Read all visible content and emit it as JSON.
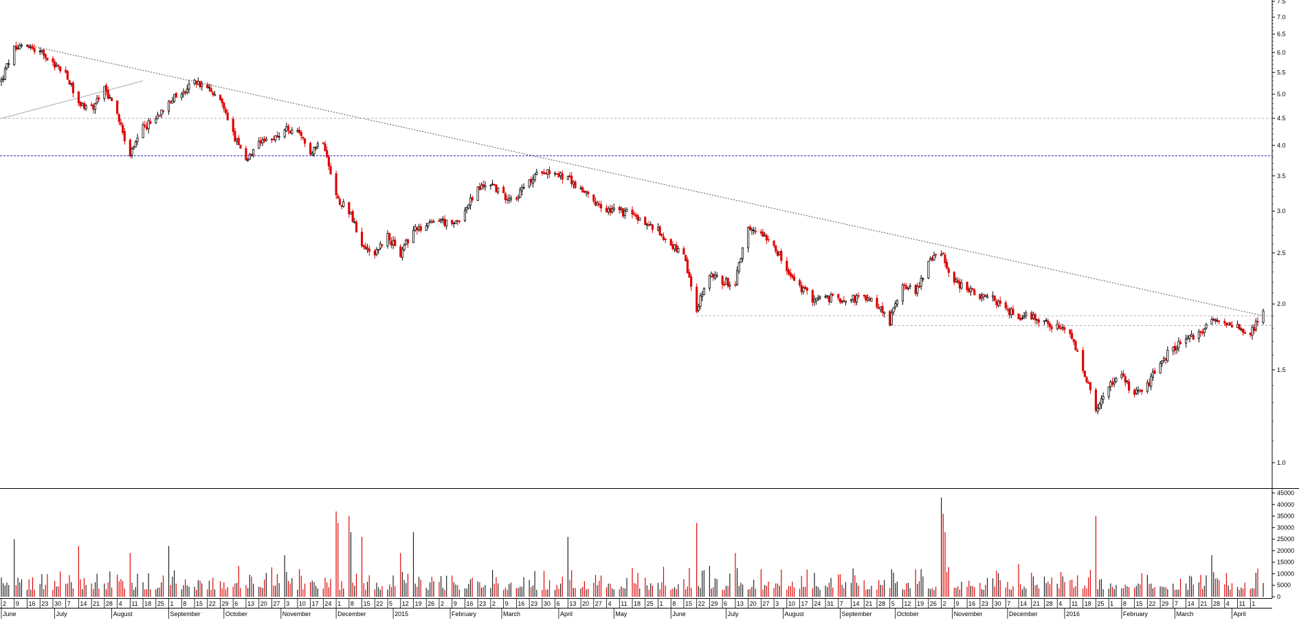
{
  "chart_data": [
    {
      "type": "candlestick",
      "y_scale": "log",
      "ylim": [
        0.9,
        7.5
      ],
      "y_ticks": [
        "1.0",
        "1.5",
        "2.0",
        "2.5",
        "3.0",
        "3.5",
        "4.0",
        "4.5",
        "5.0",
        "5.5",
        "6.0",
        "6.5",
        "7.0",
        "7.5"
      ],
      "x_range": [
        "2014-06-02",
        "2016-04-18"
      ],
      "price_path": [
        [
          "2014-06-02",
          5.3
        ],
        [
          "2014-06-09",
          6.1
        ],
        [
          "2014-06-16",
          6.2
        ],
        [
          "2014-06-23",
          6.0
        ],
        [
          "2014-06-30",
          5.7
        ],
        [
          "2014-07-07",
          5.5
        ],
        [
          "2014-07-14",
          4.8
        ],
        [
          "2014-07-21",
          4.7
        ],
        [
          "2014-07-28",
          5.1
        ],
        [
          "2014-08-04",
          4.6
        ],
        [
          "2014-08-11",
          3.8
        ],
        [
          "2014-08-18",
          4.3
        ],
        [
          "2014-08-25",
          4.5
        ],
        [
          "2014-09-01",
          4.9
        ],
        [
          "2014-09-08",
          5.0
        ],
        [
          "2014-09-15",
          5.3
        ],
        [
          "2014-09-22",
          5.1
        ],
        [
          "2014-09-29",
          4.9
        ],
        [
          "2014-10-06",
          4.2
        ],
        [
          "2014-10-13",
          3.7
        ],
        [
          "2014-10-20",
          4.0
        ],
        [
          "2014-10-27",
          4.1
        ],
        [
          "2014-11-03",
          4.3
        ],
        [
          "2014-11-10",
          4.2
        ],
        [
          "2014-11-17",
          3.9
        ],
        [
          "2014-11-24",
          4.1
        ],
        [
          "2014-12-01",
          3.2
        ],
        [
          "2014-12-08",
          3.0
        ],
        [
          "2014-12-15",
          2.6
        ],
        [
          "2014-12-22",
          2.5
        ],
        [
          "2014-12-29",
          2.7
        ],
        [
          "2015-01-05",
          2.45
        ],
        [
          "2015-01-12",
          2.8
        ],
        [
          "2015-01-19",
          2.8
        ],
        [
          "2015-01-26",
          2.9
        ],
        [
          "2015-02-02",
          2.8
        ],
        [
          "2015-02-09",
          3.0
        ],
        [
          "2015-02-16",
          3.3
        ],
        [
          "2015-02-23",
          3.4
        ],
        [
          "2015-03-02",
          3.2
        ],
        [
          "2015-03-09",
          3.2
        ],
        [
          "2015-03-16",
          3.4
        ],
        [
          "2015-03-23",
          3.6
        ],
        [
          "2015-03-30",
          3.55
        ],
        [
          "2015-04-06",
          3.45
        ],
        [
          "2015-04-13",
          3.3
        ],
        [
          "2015-04-20",
          3.1
        ],
        [
          "2015-04-27",
          3.0
        ],
        [
          "2015-05-04",
          3.0
        ],
        [
          "2015-05-11",
          2.95
        ],
        [
          "2015-05-18",
          2.85
        ],
        [
          "2015-05-25",
          2.75
        ],
        [
          "2015-06-01",
          2.6
        ],
        [
          "2015-06-08",
          2.45
        ],
        [
          "2015-06-15",
          1.95
        ],
        [
          "2015-06-22",
          2.3
        ],
        [
          "2015-06-29",
          2.2
        ],
        [
          "2015-07-06",
          2.2
        ],
        [
          "2015-07-13",
          2.75
        ],
        [
          "2015-07-20",
          2.75
        ],
        [
          "2015-07-27",
          2.6
        ],
        [
          "2015-08-03",
          2.3
        ],
        [
          "2015-08-10",
          2.15
        ],
        [
          "2015-08-17",
          2.05
        ],
        [
          "2015-08-24",
          2.05
        ],
        [
          "2015-08-31",
          2.05
        ],
        [
          "2015-09-07",
          2.05
        ],
        [
          "2015-09-14",
          2.05
        ],
        [
          "2015-09-21",
          2.0
        ],
        [
          "2015-09-28",
          1.85
        ],
        [
          "2015-10-05",
          2.2
        ],
        [
          "2015-10-12",
          2.1
        ],
        [
          "2015-10-19",
          2.4
        ],
        [
          "2015-10-26",
          2.5
        ],
        [
          "2015-11-02",
          2.2
        ],
        [
          "2015-11-09",
          2.15
        ],
        [
          "2015-11-16",
          2.05
        ],
        [
          "2015-11-23",
          2.05
        ],
        [
          "2015-11-30",
          1.95
        ],
        [
          "2015-12-07",
          1.9
        ],
        [
          "2015-12-14",
          1.9
        ],
        [
          "2015-12-21",
          1.85
        ],
        [
          "2015-12-28",
          1.8
        ],
        [
          "2016-01-04",
          1.75
        ],
        [
          "2016-01-11",
          1.5
        ],
        [
          "2016-01-18",
          1.25
        ],
        [
          "2016-01-25",
          1.4
        ],
        [
          "2016-02-01",
          1.45
        ],
        [
          "2016-02-08",
          1.35
        ],
        [
          "2016-02-15",
          1.4
        ],
        [
          "2016-02-22",
          1.55
        ],
        [
          "2016-02-29",
          1.65
        ],
        [
          "2016-03-07",
          1.7
        ],
        [
          "2016-03-14",
          1.75
        ],
        [
          "2016-03-21",
          1.85
        ],
        [
          "2016-03-28",
          1.85
        ],
        [
          "2016-04-04",
          1.8
        ],
        [
          "2016-04-11",
          1.75
        ],
        [
          "2016-04-18",
          1.95
        ]
      ],
      "lines": [
        {
          "kind": "trendline-dotted",
          "from": [
            "2014-06-16",
            6.2
          ],
          "to": [
            "2016-04-18",
            1.9
          ]
        },
        {
          "kind": "trendline-solid",
          "from": [
            "2014-06-02",
            4.5
          ],
          "to": [
            "2014-08-18",
            5.3
          ]
        },
        {
          "kind": "horizontal-dashed-blue",
          "y": 3.82
        },
        {
          "kind": "horizontal-dashed",
          "y": 4.5
        },
        {
          "kind": "horizontal-dashed",
          "y": 1.9,
          "from": "2015-06-15"
        },
        {
          "kind": "horizontal-dashed",
          "y": 1.82,
          "from": "2015-09-28"
        }
      ],
      "colors": {
        "down": "#e00000",
        "up_body": "#ffffff",
        "up_outline": "#000000",
        "trend": "#777777",
        "blue_line": "#2020c0"
      }
    },
    {
      "type": "bar",
      "name": "volume",
      "ylim": [
        0,
        45000
      ],
      "y_ticks": [
        "0",
        "5000",
        "10000",
        "15000",
        "20000",
        "25000",
        "30000",
        "35000",
        "40000",
        "45000"
      ],
      "typical_range": [
        3000,
        12000
      ],
      "spikes": [
        [
          "2014-06-09",
          25000
        ],
        [
          "2014-07-14",
          22000
        ],
        [
          "2014-08-11",
          19000
        ],
        [
          "2014-09-01",
          22000
        ],
        [
          "2014-11-03",
          18000
        ],
        [
          "2014-12-01",
          37000
        ],
        [
          "2014-12-02",
          32000
        ],
        [
          "2014-12-08",
          35000
        ],
        [
          "2014-12-09",
          28000
        ],
        [
          "2014-12-15",
          26000
        ],
        [
          "2015-01-05",
          19000
        ],
        [
          "2015-01-12",
          28000
        ],
        [
          "2015-04-06",
          26000
        ],
        [
          "2015-06-15",
          32000
        ],
        [
          "2015-07-06",
          19000
        ],
        [
          "2015-10-26",
          43000
        ],
        [
          "2015-10-27",
          36000
        ],
        [
          "2015-10-28",
          28000
        ],
        [
          "2016-01-18",
          35000
        ],
        [
          "2016-03-21",
          18000
        ]
      ]
    }
  ],
  "axis": {
    "x_day_labels": [
      "2",
      "9",
      "16",
      "23",
      "30",
      "7",
      "14",
      "21",
      "28",
      "4",
      "11",
      "18",
      "25",
      "1",
      "8",
      "15",
      "22",
      "29",
      "6",
      "13",
      "20",
      "27",
      "3",
      "10",
      "17",
      "24",
      "1",
      "8",
      "15",
      "22",
      "5",
      "12",
      "19",
      "26",
      "2",
      "9",
      "16",
      "23",
      "2",
      "9",
      "16",
      "23",
      "30",
      "6",
      "13",
      "20",
      "27",
      "4",
      "11",
      "18",
      "25",
      "1",
      "8",
      "15",
      "22",
      "29",
      "6",
      "13",
      "20",
      "27",
      "3",
      "10",
      "17",
      "24",
      "31",
      "7",
      "14",
      "21",
      "28",
      "5",
      "12",
      "19",
      "26",
      "2",
      "9",
      "16",
      "23",
      "30",
      "7",
      "14",
      "21",
      "28",
      "4",
      "11",
      "18",
      "25",
      "1",
      "8",
      "15",
      "22",
      "29",
      "7",
      "14",
      "21",
      "28",
      "4",
      "11",
      "1"
    ],
    "x_month_labels": [
      {
        "label": "June",
        "date": "2014-06-02"
      },
      {
        "label": "July",
        "date": "2014-07-01"
      },
      {
        "label": "August",
        "date": "2014-08-01"
      },
      {
        "label": "September",
        "date": "2014-09-01"
      },
      {
        "label": "October",
        "date": "2014-10-01"
      },
      {
        "label": "November",
        "date": "2014-11-01"
      },
      {
        "label": "December",
        "date": "2014-12-01"
      },
      {
        "label": "2015",
        "date": "2015-01-01"
      },
      {
        "label": "February",
        "date": "2015-02-01"
      },
      {
        "label": "March",
        "date": "2015-03-01"
      },
      {
        "label": "April",
        "date": "2015-04-01"
      },
      {
        "label": "May",
        "date": "2015-05-01"
      },
      {
        "label": "June",
        "date": "2015-06-01"
      },
      {
        "label": "July",
        "date": "2015-07-01"
      },
      {
        "label": "August",
        "date": "2015-08-01"
      },
      {
        "label": "September",
        "date": "2015-09-01"
      },
      {
        "label": "October",
        "date": "2015-10-01"
      },
      {
        "label": "November",
        "date": "2015-11-01"
      },
      {
        "label": "December",
        "date": "2015-12-01"
      },
      {
        "label": "2016",
        "date": "2016-01-01"
      },
      {
        "label": "February",
        "date": "2016-02-01"
      },
      {
        "label": "March",
        "date": "2016-03-01"
      },
      {
        "label": "April",
        "date": "2016-04-01"
      }
    ]
  }
}
